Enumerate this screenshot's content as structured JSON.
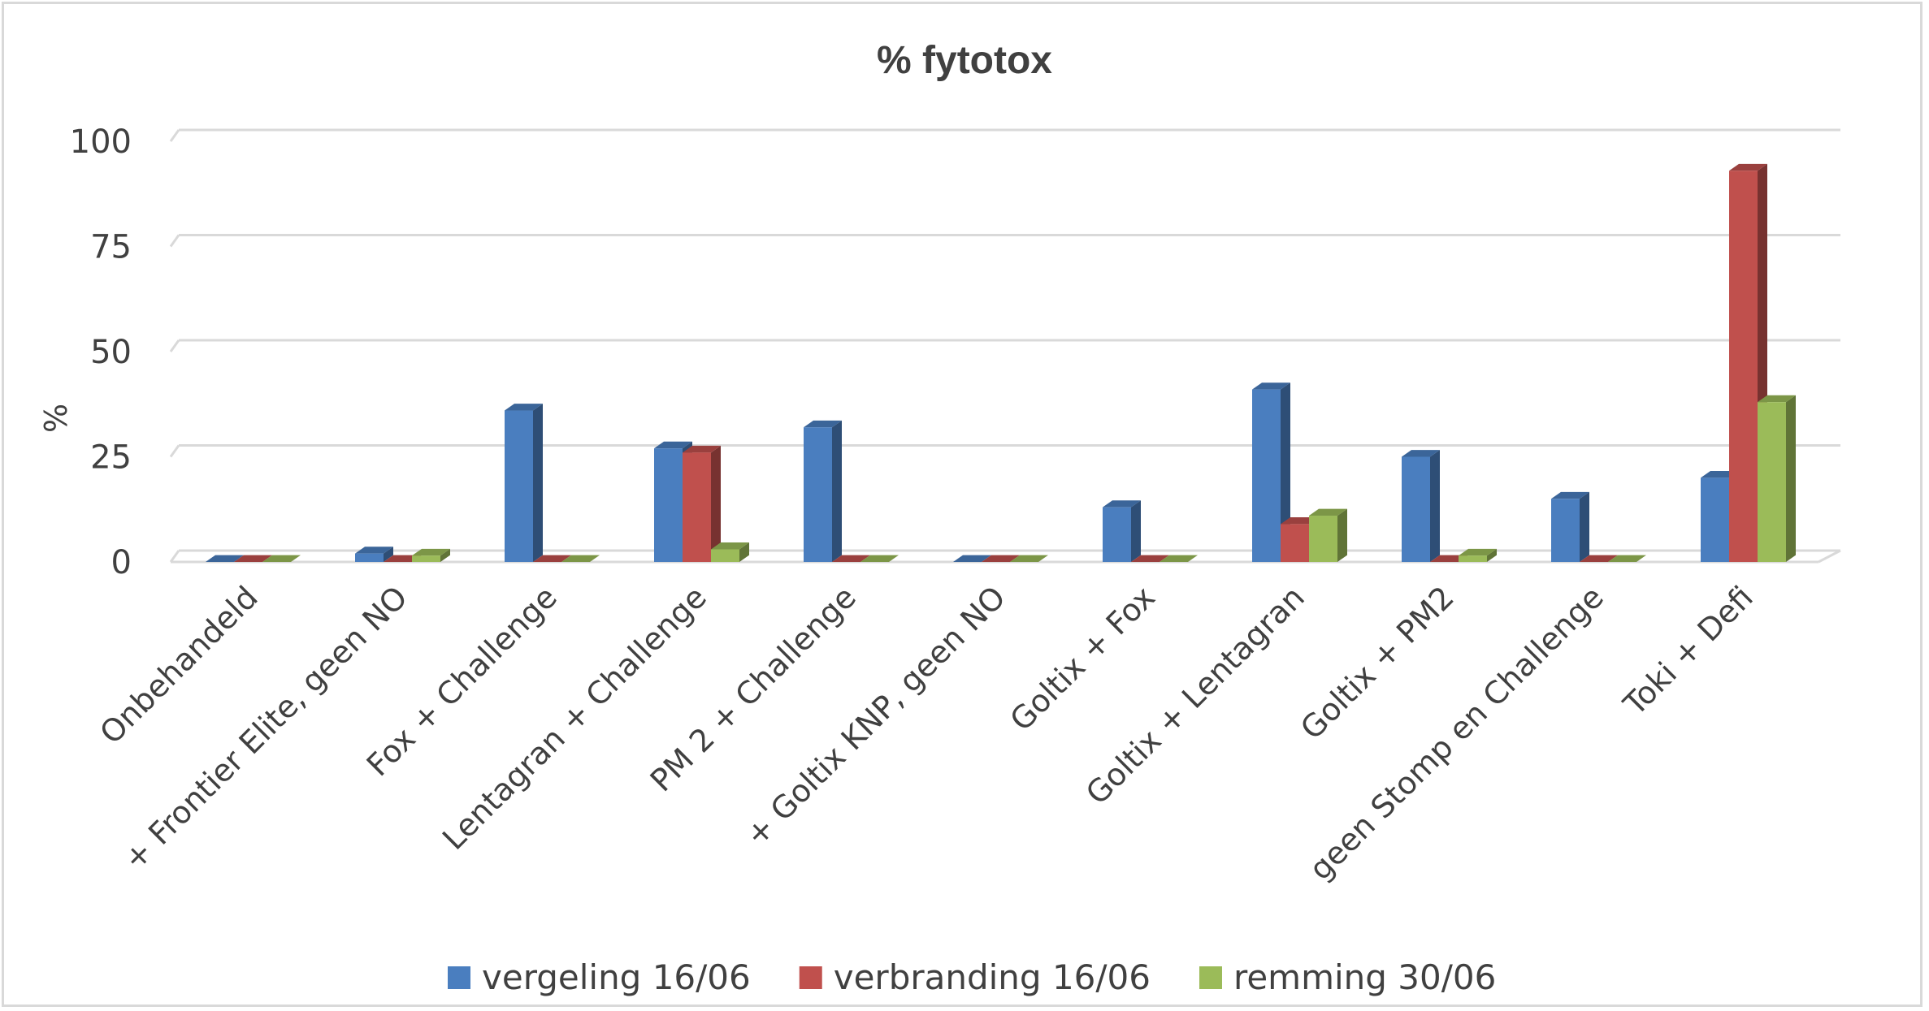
{
  "chart_data": {
    "type": "bar",
    "title": "% fytotox",
    "ylabel": "%",
    "xlabel": "",
    "ylim": [
      0,
      100
    ],
    "yticks": [
      0,
      25,
      50,
      75,
      100
    ],
    "grid": true,
    "legend_position": "bottom",
    "categories": [
      "Onbehandeld",
      "+ Frontier Elite, geen NO",
      "Fox + Challenge",
      "Lentagran + Challenge",
      "PM 2 + Challenge",
      "+ Goltix KNP, geen NO",
      "Goltix + Fox",
      "Goltix + Lentagran",
      "Goltix + PM2",
      "geen Stomp en Challenge",
      "Toki + Defi"
    ],
    "series": [
      {
        "name": "vergeling 16/06",
        "color": "#4a7ebf",
        "values": [
          0,
          2,
          36,
          27,
          32,
          0,
          13,
          41,
          25,
          15,
          20
        ]
      },
      {
        "name": "verbranding 16/06",
        "color": "#c0504d",
        "values": [
          0,
          0,
          0,
          26,
          0,
          0,
          0,
          9,
          0,
          0,
          93
        ]
      },
      {
        "name": "remming 30/06",
        "color": "#9bbb59",
        "values": [
          0,
          1.5,
          0,
          3,
          0,
          0,
          0,
          11,
          1.5,
          0,
          38
        ]
      }
    ]
  }
}
